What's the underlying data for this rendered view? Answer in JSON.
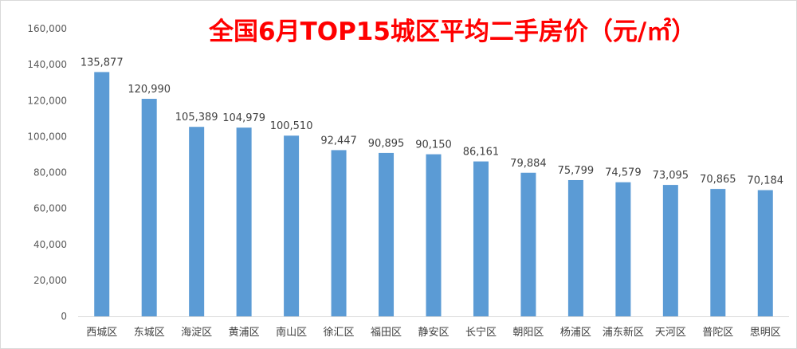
{
  "chart_data": {
    "type": "bar",
    "title": "全国6月TOP15城区平均二手房价（元/㎡）",
    "xlabel": "",
    "ylabel": "",
    "ylim": [
      0,
      160000
    ],
    "y_ticks": [
      "0",
      "20,000",
      "40,000",
      "60,000",
      "80,000",
      "100,000",
      "120,000",
      "140,000",
      "160,000"
    ],
    "grid": false,
    "bar_color": "#5b9bd5",
    "categories": [
      "西城区",
      "东城区",
      "海淀区",
      "黄浦区",
      "南山区",
      "徐汇区",
      "福田区",
      "静安区",
      "长宁区",
      "朝阳区",
      "杨浦区",
      "浦东新区",
      "天河区",
      "普陀区",
      "思明区"
    ],
    "values": [
      135877,
      120990,
      105389,
      104979,
      100510,
      92447,
      90895,
      90150,
      86161,
      79884,
      75799,
      74579,
      73095,
      70865,
      70184
    ],
    "data_labels": [
      "135,877",
      "120,990",
      "105,389",
      "104,979",
      "100,510",
      "92,447",
      "90,895",
      "90,150",
      "86,161",
      "79,884",
      "75,799",
      "74,579",
      "73,095",
      "70,865",
      "70,184"
    ]
  }
}
